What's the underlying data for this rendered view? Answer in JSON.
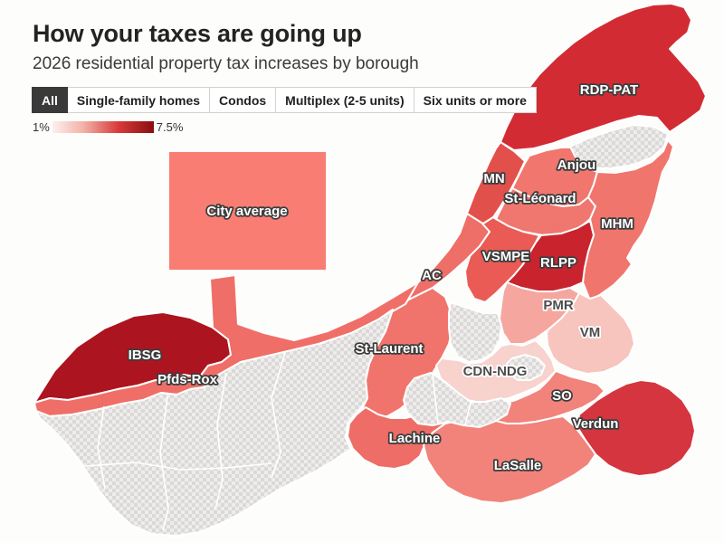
{
  "header": {
    "title": "How your taxes are going up",
    "subtitle": "2026 residential property tax increases by borough"
  },
  "tabs": [
    {
      "label": "All",
      "active": true
    },
    {
      "label": "Single-family homes",
      "active": false
    },
    {
      "label": "Condos",
      "active": false
    },
    {
      "label": "Multiplex (2-5 units)",
      "active": false
    },
    {
      "label": "Six units or more",
      "active": false
    }
  ],
  "legend": {
    "min_label": "1%",
    "max_label": "7.5%",
    "gradient": [
      "#fdf0ee",
      "#f3b2a9",
      "#d93a39",
      "#8a0d12"
    ]
  },
  "city_average": {
    "label": "City average",
    "fill": "#f97d73"
  },
  "map": {
    "boundary_color": "#ffffff",
    "non_city_pattern": {
      "light": "#efedeb",
      "dark": "#dbd9d7"
    },
    "label_styles": {
      "light_text": "#ffffff",
      "light_outline": "#3d3d3d",
      "dark_text": "#4d4d4d",
      "dark_outline": "#ffffff"
    },
    "regions": [
      {
        "id": "rdp_pat",
        "label": "RDP-PAT",
        "fill": "#d32b33",
        "label_style": "light"
      },
      {
        "id": "anjou",
        "label": "Anjou",
        "fill": "#f0766e",
        "label_style": "light"
      },
      {
        "id": "mn",
        "label": "MN",
        "fill": "#e2504b",
        "label_style": "light"
      },
      {
        "id": "st_leonard",
        "label": "St-Léonard",
        "fill": "#ef776f",
        "label_style": "light"
      },
      {
        "id": "mhm",
        "label": "MHM",
        "fill": "#f0756d",
        "label_style": "light"
      },
      {
        "id": "vsmpe",
        "label": "VSMPE",
        "fill": "#e95b54",
        "label_style": "light"
      },
      {
        "id": "rlpp",
        "label": "RLPP",
        "fill": "#c9242e",
        "label_style": "light"
      },
      {
        "id": "ac",
        "label": "AC",
        "fill": "#ee6f68",
        "label_style": "light"
      },
      {
        "id": "pmr",
        "label": "PMR",
        "fill": "#f4a69f",
        "label_style": "dark"
      },
      {
        "id": "vm",
        "label": "VM",
        "fill": "#f7c4be",
        "label_style": "dark"
      },
      {
        "id": "st_laurent",
        "label": "St-Laurent",
        "fill": "#f0746c",
        "label_style": "light"
      },
      {
        "id": "cdn_ndg",
        "label": "CDN-NDG",
        "fill": "#f8d2cd",
        "label_style": "dark"
      },
      {
        "id": "ibsg",
        "label": "IBSG",
        "fill": "#ac1420",
        "label_style": "light"
      },
      {
        "id": "pfds_rox",
        "label": "Pfds-Rox",
        "fill": "#ef6f68",
        "label_style": "light"
      },
      {
        "id": "so",
        "label": "SO",
        "fill": "#f1837b",
        "label_style": "light"
      },
      {
        "id": "verdun",
        "label": "Verdun",
        "fill": "#d4353e",
        "label_style": "light"
      },
      {
        "id": "lachine",
        "label": "Lachine",
        "fill": "#ee6d66",
        "label_style": "light"
      },
      {
        "id": "lasalle",
        "label": "LaSalle",
        "fill": "#f1837b",
        "label_style": "light"
      }
    ]
  }
}
